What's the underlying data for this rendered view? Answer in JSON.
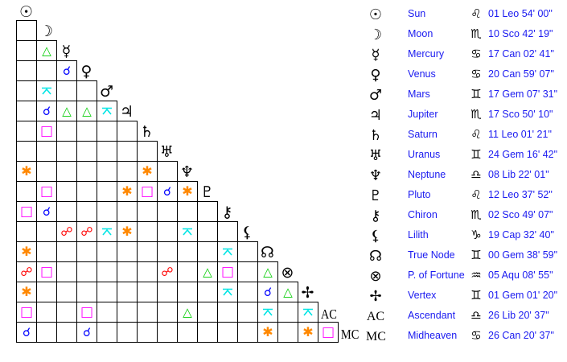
{
  "colors": {
    "conjunction": "#0000ff",
    "opposition": "#ff0000",
    "trine": "#00cc00",
    "square": "#ff00ff",
    "sextile": "#ff8800",
    "quincunx": "#00e5e5"
  },
  "aspect_symbols": {
    "conjunction": "☌",
    "opposition": "☍",
    "trine": "△",
    "square": "□",
    "sextile": "✱"
  },
  "planets": [
    {
      "name": "Sun",
      "glyph": "☉",
      "sign": "♌",
      "position": "01 Leo 54' 00\""
    },
    {
      "name": "Moon",
      "glyph": "☽",
      "sign": "♏",
      "position": "10 Sco 42' 19\""
    },
    {
      "name": "Mercury",
      "glyph": "☿",
      "sign": "♋",
      "position": "17 Can 02' 41\""
    },
    {
      "name": "Venus",
      "glyph": "♀",
      "sign": "♋",
      "position": "20 Can 59' 07\""
    },
    {
      "name": "Mars",
      "glyph": "♂",
      "sign": "♊",
      "position": "17 Gem 07' 31\""
    },
    {
      "name": "Jupiter",
      "glyph": "♃",
      "sign": "♏",
      "position": "17 Sco 50' 10\""
    },
    {
      "name": "Saturn",
      "glyph": "♄",
      "sign": "♌",
      "position": "11 Leo 01' 21\""
    },
    {
      "name": "Uranus",
      "glyph": "♅",
      "sign": "♊",
      "position": "24 Gem 16' 42\""
    },
    {
      "name": "Neptune",
      "glyph": "♆",
      "sign": "♎",
      "position": "08 Lib 22' 01\""
    },
    {
      "name": "Pluto",
      "glyph": "♇",
      "sign": "♌",
      "position": "12 Leo 37' 52\""
    },
    {
      "name": "Chiron",
      "glyph": "⚷",
      "sign": "♏",
      "position": "02 Sco 49' 07\""
    },
    {
      "name": "Lilith",
      "glyph": "⚸",
      "sign": "♑",
      "position": "19 Cap 32' 40\""
    },
    {
      "name": "True Node",
      "glyph": "☊",
      "sign": "♊",
      "position": "00 Gem 38' 59\""
    },
    {
      "name": "P. of Fortune",
      "glyph": "⊗",
      "sign": "♒",
      "position": "05 Aqu 08' 55\""
    },
    {
      "name": "Vertex",
      "glyph": "✢",
      "sign": "♊",
      "position": "01 Gem 01' 20\""
    },
    {
      "name": "Ascendant",
      "glyph": "AC",
      "sign": "♎",
      "position": "26 Lib 20' 37\""
    },
    {
      "name": "Midheaven",
      "glyph": "MC",
      "sign": "♋",
      "position": "26 Can 20' 37\""
    }
  ],
  "aspects": [
    [
      "Mercury",
      "Moon",
      "trine"
    ],
    [
      "Venus",
      "Mercury",
      "conjunction"
    ],
    [
      "Mars",
      "Moon",
      "quincunx"
    ],
    [
      "Jupiter",
      "Moon",
      "conjunction"
    ],
    [
      "Jupiter",
      "Mercury",
      "trine"
    ],
    [
      "Jupiter",
      "Venus",
      "trine"
    ],
    [
      "Jupiter",
      "Mars",
      "quincunx"
    ],
    [
      "Saturn",
      "Moon",
      "square"
    ],
    [
      "Neptune",
      "Sun",
      "sextile"
    ],
    [
      "Neptune",
      "Saturn",
      "sextile"
    ],
    [
      "Pluto",
      "Moon",
      "square"
    ],
    [
      "Pluto",
      "Jupiter",
      "sextile"
    ],
    [
      "Pluto",
      "Saturn",
      "square"
    ],
    [
      "Pluto",
      "Uranus",
      "conjunction"
    ],
    [
      "Pluto",
      "Neptune",
      "sextile"
    ],
    [
      "Chiron",
      "Sun",
      "square"
    ],
    [
      "Chiron",
      "Moon",
      "conjunction"
    ],
    [
      "Lilith",
      "Mercury",
      "opposition"
    ],
    [
      "Lilith",
      "Venus",
      "opposition"
    ],
    [
      "Lilith",
      "Mars",
      "quincunx"
    ],
    [
      "Lilith",
      "Jupiter",
      "sextile"
    ],
    [
      "Lilith",
      "Neptune",
      "quincunx"
    ],
    [
      "True Node",
      "Sun",
      "sextile"
    ],
    [
      "True Node",
      "Chiron",
      "quincunx"
    ],
    [
      "P. of Fortune",
      "Sun",
      "opposition"
    ],
    [
      "P. of Fortune",
      "Moon",
      "square"
    ],
    [
      "P. of Fortune",
      "Uranus",
      "opposition"
    ],
    [
      "P. of Fortune",
      "Pluto",
      "trine"
    ],
    [
      "P. of Fortune",
      "Chiron",
      "square"
    ],
    [
      "P. of Fortune",
      "True Node",
      "trine"
    ],
    [
      "Vertex",
      "Sun",
      "sextile"
    ],
    [
      "Vertex",
      "Chiron",
      "quincunx"
    ],
    [
      "Vertex",
      "True Node",
      "conjunction"
    ],
    [
      "Vertex",
      "P. of Fortune",
      "trine"
    ],
    [
      "Ascendant",
      "Sun",
      "square"
    ],
    [
      "Ascendant",
      "Venus",
      "square"
    ],
    [
      "Ascendant",
      "Neptune",
      "trine"
    ],
    [
      "Ascendant",
      "True Node",
      "quincunx"
    ],
    [
      "Ascendant",
      "Vertex",
      "quincunx"
    ],
    [
      "Midheaven",
      "Sun",
      "conjunction"
    ],
    [
      "Midheaven",
      "Venus",
      "conjunction"
    ],
    [
      "Midheaven",
      "True Node",
      "sextile"
    ],
    [
      "Midheaven",
      "Vertex",
      "sextile"
    ],
    [
      "Midheaven",
      "Ascendant",
      "square"
    ]
  ]
}
